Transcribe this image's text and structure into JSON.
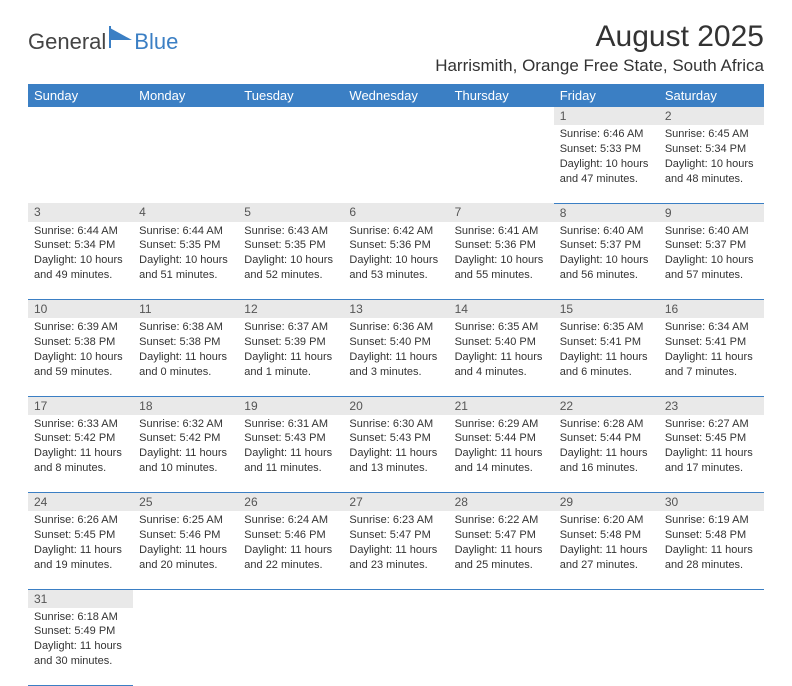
{
  "logo": {
    "text1": "General",
    "text2": "Blue"
  },
  "title": "August 2025",
  "location": "Harrismith, Orange Free State, South Africa",
  "colors": {
    "header_bg": "#3b7fc4",
    "header_fg": "#ffffff",
    "daynum_bg": "#e9e9e9",
    "row_border": "#3b7fc4",
    "text": "#333333",
    "logo_blue": "#3b7fc4"
  },
  "fonts": {
    "title_size": 30,
    "location_size": 17,
    "header_size": 13,
    "daynum_size": 12,
    "cell_size": 11
  },
  "day_headers": [
    "Sunday",
    "Monday",
    "Tuesday",
    "Wednesday",
    "Thursday",
    "Friday",
    "Saturday"
  ],
  "weeks": [
    [
      null,
      null,
      null,
      null,
      null,
      {
        "n": "1",
        "sunrise": "Sunrise: 6:46 AM",
        "sunset": "Sunset: 5:33 PM",
        "daylight": "Daylight: 10 hours and 47 minutes."
      },
      {
        "n": "2",
        "sunrise": "Sunrise: 6:45 AM",
        "sunset": "Sunset: 5:34 PM",
        "daylight": "Daylight: 10 hours and 48 minutes."
      }
    ],
    [
      {
        "n": "3",
        "sunrise": "Sunrise: 6:44 AM",
        "sunset": "Sunset: 5:34 PM",
        "daylight": "Daylight: 10 hours and 49 minutes."
      },
      {
        "n": "4",
        "sunrise": "Sunrise: 6:44 AM",
        "sunset": "Sunset: 5:35 PM",
        "daylight": "Daylight: 10 hours and 51 minutes."
      },
      {
        "n": "5",
        "sunrise": "Sunrise: 6:43 AM",
        "sunset": "Sunset: 5:35 PM",
        "daylight": "Daylight: 10 hours and 52 minutes."
      },
      {
        "n": "6",
        "sunrise": "Sunrise: 6:42 AM",
        "sunset": "Sunset: 5:36 PM",
        "daylight": "Daylight: 10 hours and 53 minutes."
      },
      {
        "n": "7",
        "sunrise": "Sunrise: 6:41 AM",
        "sunset": "Sunset: 5:36 PM",
        "daylight": "Daylight: 10 hours and 55 minutes."
      },
      {
        "n": "8",
        "sunrise": "Sunrise: 6:40 AM",
        "sunset": "Sunset: 5:37 PM",
        "daylight": "Daylight: 10 hours and 56 minutes."
      },
      {
        "n": "9",
        "sunrise": "Sunrise: 6:40 AM",
        "sunset": "Sunset: 5:37 PM",
        "daylight": "Daylight: 10 hours and 57 minutes."
      }
    ],
    [
      {
        "n": "10",
        "sunrise": "Sunrise: 6:39 AM",
        "sunset": "Sunset: 5:38 PM",
        "daylight": "Daylight: 10 hours and 59 minutes."
      },
      {
        "n": "11",
        "sunrise": "Sunrise: 6:38 AM",
        "sunset": "Sunset: 5:38 PM",
        "daylight": "Daylight: 11 hours and 0 minutes."
      },
      {
        "n": "12",
        "sunrise": "Sunrise: 6:37 AM",
        "sunset": "Sunset: 5:39 PM",
        "daylight": "Daylight: 11 hours and 1 minute."
      },
      {
        "n": "13",
        "sunrise": "Sunrise: 6:36 AM",
        "sunset": "Sunset: 5:40 PM",
        "daylight": "Daylight: 11 hours and 3 minutes."
      },
      {
        "n": "14",
        "sunrise": "Sunrise: 6:35 AM",
        "sunset": "Sunset: 5:40 PM",
        "daylight": "Daylight: 11 hours and 4 minutes."
      },
      {
        "n": "15",
        "sunrise": "Sunrise: 6:35 AM",
        "sunset": "Sunset: 5:41 PM",
        "daylight": "Daylight: 11 hours and 6 minutes."
      },
      {
        "n": "16",
        "sunrise": "Sunrise: 6:34 AM",
        "sunset": "Sunset: 5:41 PM",
        "daylight": "Daylight: 11 hours and 7 minutes."
      }
    ],
    [
      {
        "n": "17",
        "sunrise": "Sunrise: 6:33 AM",
        "sunset": "Sunset: 5:42 PM",
        "daylight": "Daylight: 11 hours and 8 minutes."
      },
      {
        "n": "18",
        "sunrise": "Sunrise: 6:32 AM",
        "sunset": "Sunset: 5:42 PM",
        "daylight": "Daylight: 11 hours and 10 minutes."
      },
      {
        "n": "19",
        "sunrise": "Sunrise: 6:31 AM",
        "sunset": "Sunset: 5:43 PM",
        "daylight": "Daylight: 11 hours and 11 minutes."
      },
      {
        "n": "20",
        "sunrise": "Sunrise: 6:30 AM",
        "sunset": "Sunset: 5:43 PM",
        "daylight": "Daylight: 11 hours and 13 minutes."
      },
      {
        "n": "21",
        "sunrise": "Sunrise: 6:29 AM",
        "sunset": "Sunset: 5:44 PM",
        "daylight": "Daylight: 11 hours and 14 minutes."
      },
      {
        "n": "22",
        "sunrise": "Sunrise: 6:28 AM",
        "sunset": "Sunset: 5:44 PM",
        "daylight": "Daylight: 11 hours and 16 minutes."
      },
      {
        "n": "23",
        "sunrise": "Sunrise: 6:27 AM",
        "sunset": "Sunset: 5:45 PM",
        "daylight": "Daylight: 11 hours and 17 minutes."
      }
    ],
    [
      {
        "n": "24",
        "sunrise": "Sunrise: 6:26 AM",
        "sunset": "Sunset: 5:45 PM",
        "daylight": "Daylight: 11 hours and 19 minutes."
      },
      {
        "n": "25",
        "sunrise": "Sunrise: 6:25 AM",
        "sunset": "Sunset: 5:46 PM",
        "daylight": "Daylight: 11 hours and 20 minutes."
      },
      {
        "n": "26",
        "sunrise": "Sunrise: 6:24 AM",
        "sunset": "Sunset: 5:46 PM",
        "daylight": "Daylight: 11 hours and 22 minutes."
      },
      {
        "n": "27",
        "sunrise": "Sunrise: 6:23 AM",
        "sunset": "Sunset: 5:47 PM",
        "daylight": "Daylight: 11 hours and 23 minutes."
      },
      {
        "n": "28",
        "sunrise": "Sunrise: 6:22 AM",
        "sunset": "Sunset: 5:47 PM",
        "daylight": "Daylight: 11 hours and 25 minutes."
      },
      {
        "n": "29",
        "sunrise": "Sunrise: 6:20 AM",
        "sunset": "Sunset: 5:48 PM",
        "daylight": "Daylight: 11 hours and 27 minutes."
      },
      {
        "n": "30",
        "sunrise": "Sunrise: 6:19 AM",
        "sunset": "Sunset: 5:48 PM",
        "daylight": "Daylight: 11 hours and 28 minutes."
      }
    ],
    [
      {
        "n": "31",
        "sunrise": "Sunrise: 6:18 AM",
        "sunset": "Sunset: 5:49 PM",
        "daylight": "Daylight: 11 hours and 30 minutes."
      },
      null,
      null,
      null,
      null,
      null,
      null
    ]
  ]
}
